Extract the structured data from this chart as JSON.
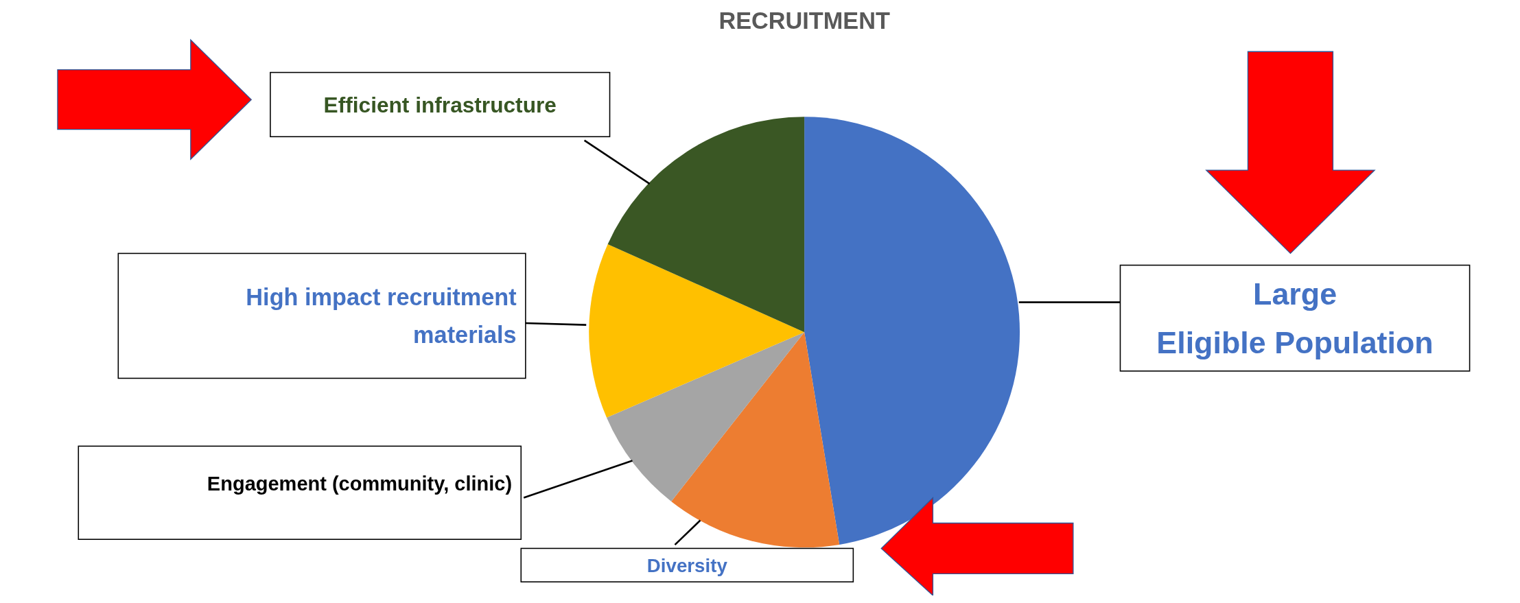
{
  "chart_data": {
    "type": "pie",
    "title": "RECRUITMENT",
    "categories": [
      "Large Eligible Population",
      "Diversity",
      "Engagement (community, clinic)",
      "High impact recruitment materials",
      "Efficient infrastructure"
    ],
    "values": [
      47.4,
      13.2,
      7.9,
      13.2,
      18.3
    ],
    "colors": [
      "#4472c4",
      "#ed7d31",
      "#a5a5a5",
      "#ffc000",
      "#3a5724"
    ]
  }
}
